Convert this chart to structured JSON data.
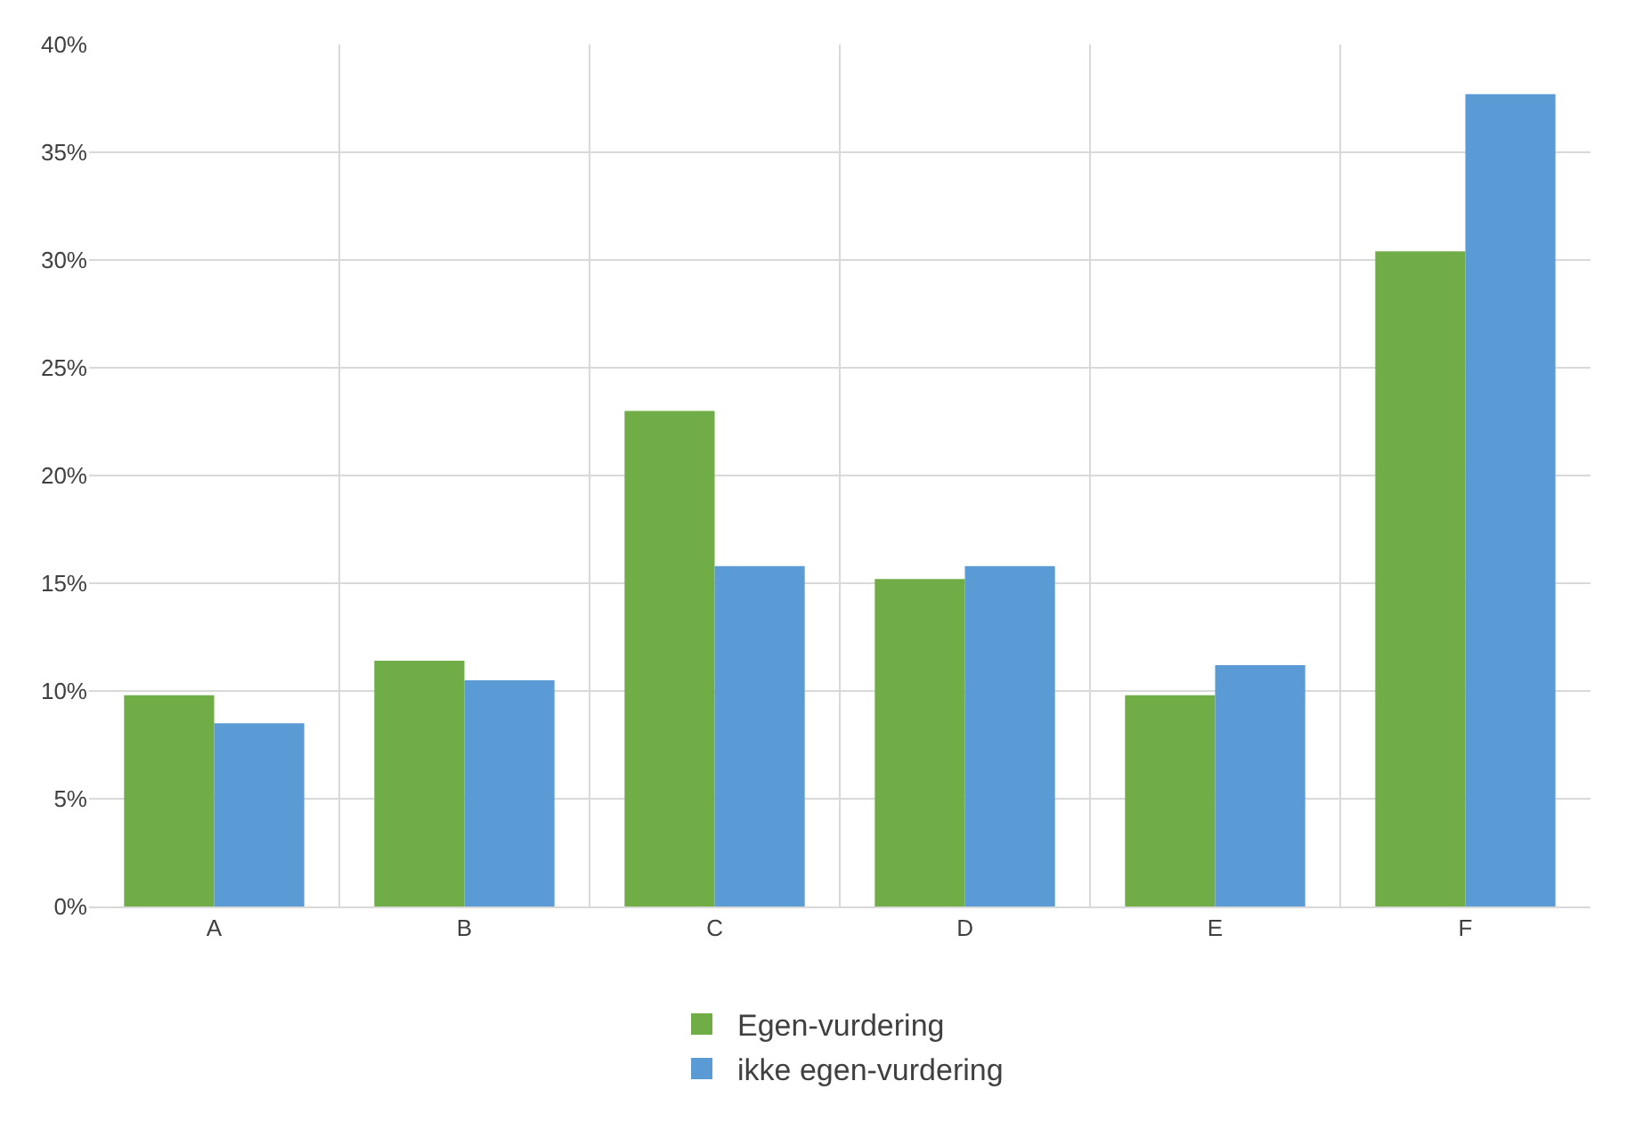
{
  "chart_data": {
    "type": "bar",
    "categories": [
      "A",
      "B",
      "C",
      "D",
      "E",
      "F"
    ],
    "series": [
      {
        "name": "Egen-vurdering",
        "color": "#70ad47",
        "values": [
          9.8,
          11.4,
          23.0,
          15.2,
          9.8,
          30.4
        ]
      },
      {
        "name": "ikke egen-vurdering",
        "color": "#5b9bd5",
        "values": [
          8.5,
          10.5,
          15.8,
          15.8,
          11.2,
          37.7
        ]
      }
    ],
    "ylim": [
      0,
      40
    ],
    "yticks": [
      {
        "value": 0,
        "label": "0%"
      },
      {
        "value": 5,
        "label": "5%"
      },
      {
        "value": 10,
        "label": "10%"
      },
      {
        "value": 15,
        "label": "15%"
      },
      {
        "value": 20,
        "label": "20%"
      },
      {
        "value": 25,
        "label": "25%"
      },
      {
        "value": 30,
        "label": "30%"
      },
      {
        "value": 35,
        "label": "35%"
      },
      {
        "value": 40,
        "label": "40%"
      }
    ],
    "grid": true,
    "legend": "bottom"
  }
}
